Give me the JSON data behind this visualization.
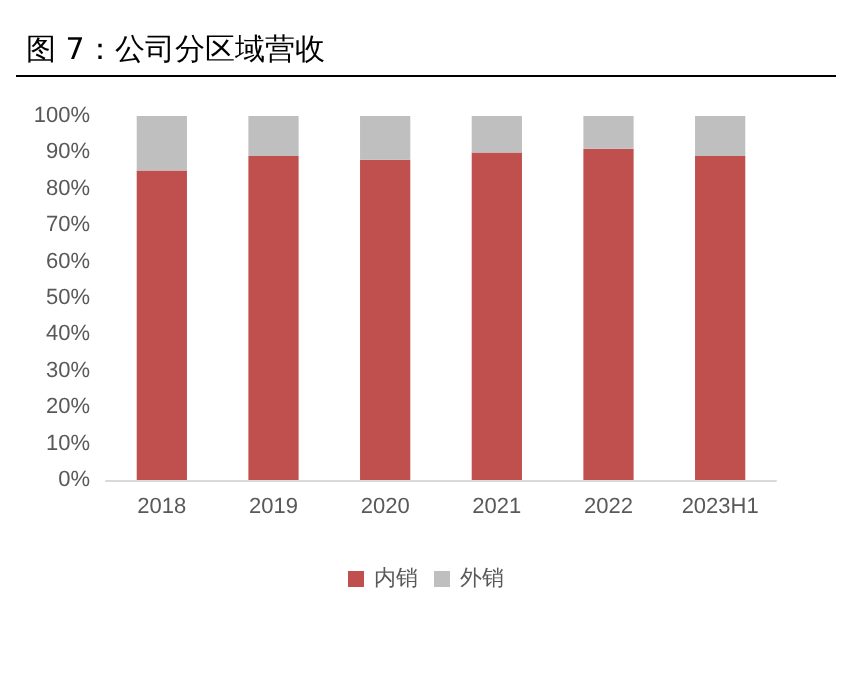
{
  "chart_data": {
    "type": "bar",
    "title": "图 7：公司分区域营收",
    "categories": [
      "2018",
      "2019",
      "2020",
      "2021",
      "2022",
      "2023H1"
    ],
    "stacked": true,
    "series": [
      {
        "name": "内销",
        "color": "#c0504d",
        "values": [
          85,
          89,
          88,
          90,
          91,
          89
        ]
      },
      {
        "name": "外销",
        "color": "#bfbfbf",
        "values": [
          15,
          11,
          12,
          10,
          9,
          11
        ]
      }
    ],
    "ylim": [
      0,
      100
    ],
    "yticks": [
      {
        "value": 0,
        "label": "0%"
      },
      {
        "value": 10,
        "label": "10%"
      },
      {
        "value": 20,
        "label": "20%"
      },
      {
        "value": 30,
        "label": "30%"
      },
      {
        "value": 40,
        "label": "40%"
      },
      {
        "value": 50,
        "label": "50%"
      },
      {
        "value": 60,
        "label": "60%"
      },
      {
        "value": 70,
        "label": "70%"
      },
      {
        "value": 80,
        "label": "80%"
      },
      {
        "value": 90,
        "label": "90%"
      },
      {
        "value": 100,
        "label": "100%"
      }
    ],
    "grid": false,
    "legend": "bottom"
  }
}
